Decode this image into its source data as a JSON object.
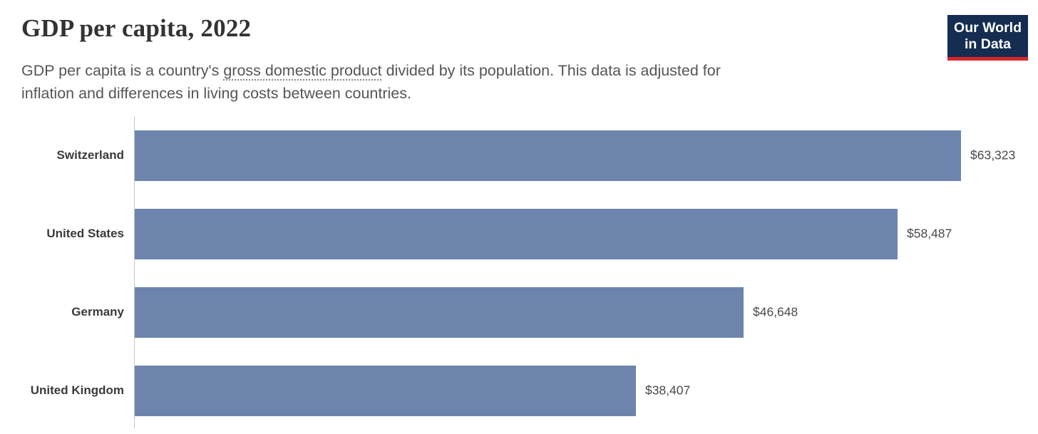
{
  "header": {
    "title": "GDP per capita, 2022",
    "subtitle_before": "GDP per capita is a country's ",
    "subtitle_link": "gross domestic product",
    "subtitle_after_line1": " divided by its population. This data is adjusted for",
    "subtitle_line2": "inflation and differences in living costs between countries."
  },
  "logo": {
    "line1": "Our World",
    "line2": "in Data",
    "bg_color": "#142d50",
    "accent_color": "#d8262c"
  },
  "chart_data": {
    "type": "bar",
    "orientation": "horizontal",
    "title": "GDP per capita, 2022",
    "categories": [
      "Switzerland",
      "United States",
      "Germany",
      "United Kingdom"
    ],
    "values": [
      63323,
      58487,
      46648,
      38407
    ],
    "value_labels": [
      "$63,323",
      "$58,487",
      "$46,648",
      "$38,407"
    ],
    "xlabel": "",
    "ylabel": "",
    "xlim": [
      0,
      63323
    ],
    "grid": false,
    "legend": false,
    "bar_color": "#6d85ad",
    "axis_color": "#c6c6c6"
  }
}
